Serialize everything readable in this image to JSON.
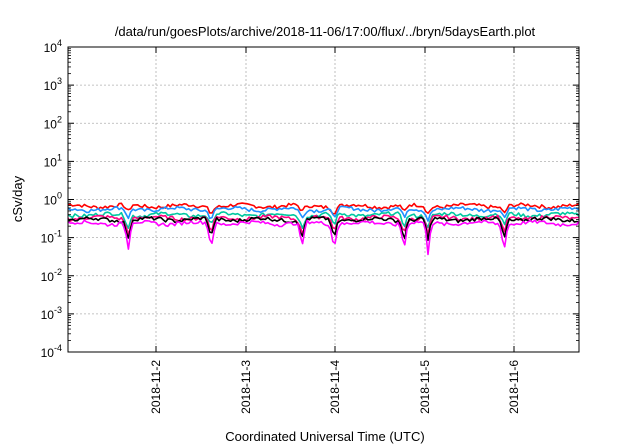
{
  "chart_data": {
    "type": "line",
    "title": "/data/run/goesPlots/archive/2018-11-06/17:00/flux/../bryn/5daysEarth.plot",
    "xlabel": "Coordinated Universal Time (UTC)",
    "ylabel": "cSv/day",
    "y_scale": "log",
    "ylim": [
      0.0001,
      10000
    ],
    "y_ticks": [
      {
        "base": "10",
        "exp": "4",
        "value": 10000
      },
      {
        "base": "10",
        "exp": "3",
        "value": 1000
      },
      {
        "base": "10",
        "exp": "2",
        "value": 100
      },
      {
        "base": "10",
        "exp": "1",
        "value": 10
      },
      {
        "base": "10",
        "exp": "0",
        "value": 1
      },
      {
        "base": "10",
        "exp": "-1",
        "value": 0.1
      },
      {
        "base": "10",
        "exp": "-2",
        "value": 0.01
      },
      {
        "base": "10",
        "exp": "-3",
        "value": 0.001
      },
      {
        "base": "10",
        "exp": "-4",
        "value": 0.0001
      }
    ],
    "xlim": [
      "2018-11-01 01:00",
      "2018-11-06 17:00"
    ],
    "x_ticks": [
      "2018-11-2",
      "2018-11-3",
      "2018-11-4",
      "2018-11-5",
      "2018-11-6"
    ],
    "grid": true,
    "series": [
      {
        "color": "#ff0000",
        "level": 0.68
      },
      {
        "color": "#1e90ff",
        "level": 0.56
      },
      {
        "color": "#00c8a0",
        "level": 0.4
      },
      {
        "color": "#ff0080",
        "level": 0.33
      },
      {
        "color": "#000000",
        "level": 0.3
      },
      {
        "color": "#ff00ff",
        "level": 0.24
      }
    ]
  }
}
